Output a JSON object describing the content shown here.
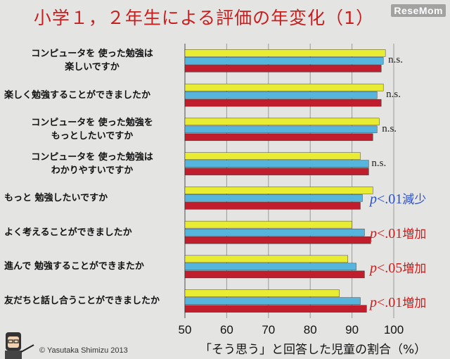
{
  "title": "小学１，２年生による評価の年変化（1）",
  "brand": "ReseMom",
  "copyright": "© Yasutaka Shimizu 2013",
  "colors": {
    "title": "#c81e1e",
    "yellow": "#e8ec32",
    "blue": "#55b5dd",
    "red": "#c01e2c",
    "blue_text": "#2b4fc9",
    "red_text": "#c81e1e"
  },
  "chart_data": {
    "type": "bar",
    "orientation": "horizontal",
    "xlabel": "「そう思う」と回答した児童の割合（%）",
    "xlim": [
      50,
      100
    ],
    "xticks": [
      "50",
      "60",
      "70",
      "80",
      "90",
      "100"
    ],
    "categories": [
      [
        "コンピュータを 使った勉強は",
        "楽しいですか"
      ],
      [
        "楽しく勉強することができましたか"
      ],
      [
        "コンピュータを 使った勉強を",
        "もっとしたいですか"
      ],
      [
        "コンピュータを 使った勉強は",
        "わかりやすいですか"
      ],
      [
        "もっと 勉強したいですか"
      ],
      [
        "よく考えることができましたか"
      ],
      [
        "進んで 勉強することができまたか"
      ],
      [
        "友だちと話し合うことができましたか"
      ]
    ],
    "series": [
      {
        "color": "yellow",
        "values": [
          98,
          97.5,
          96.5,
          92,
          95,
          90,
          89,
          87
        ]
      },
      {
        "color": "blue",
        "values": [
          97.5,
          96,
          96,
          94,
          92.5,
          93,
          91,
          92
        ]
      },
      {
        "color": "red",
        "values": [
          97,
          97,
          95,
          94,
          92,
          94.5,
          93,
          93.5
        ]
      }
    ],
    "annotations": [
      {
        "type": "ns",
        "text": "n.s."
      },
      {
        "type": "ns",
        "text": "n.s."
      },
      {
        "type": "ns",
        "text": "n.s."
      },
      {
        "type": "ns",
        "text": "n.s."
      },
      {
        "type": "p",
        "p": "p",
        "value": "<.01",
        "label": "減少",
        "color": "blue_text"
      },
      {
        "type": "p",
        "p": "p",
        "value": "<.01",
        "label": "増加",
        "color": "red_text"
      },
      {
        "type": "p",
        "p": "p",
        "value": "<.05",
        "label": "増加",
        "color": "red_text"
      },
      {
        "type": "p",
        "p": "p",
        "value": "<.01",
        "label": "増加",
        "color": "red_text"
      }
    ]
  }
}
